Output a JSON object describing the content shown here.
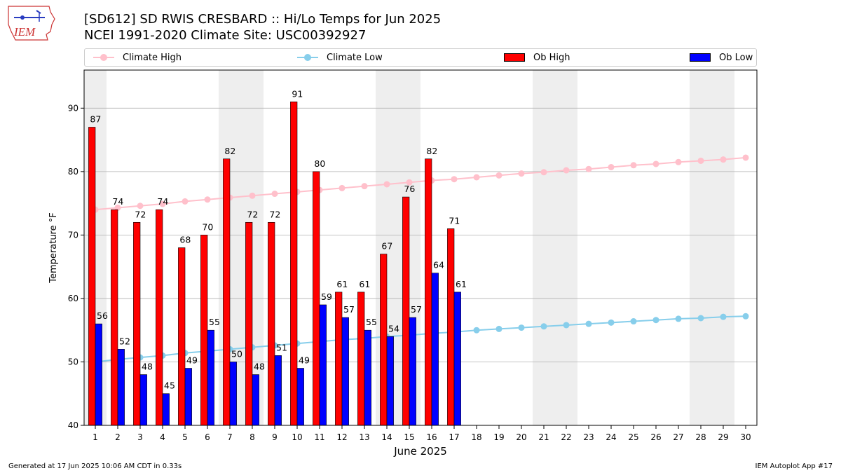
{
  "header": {
    "title_line1": "[SD612] SD RWIS CRESBARD :: Hi/Lo Temps for Jun 2025",
    "title_line2": "NCEI 1991-2020 Climate Site: USC00392927",
    "logo_text": "IEM"
  },
  "legend": {
    "climate_high": "Climate High",
    "climate_low": "Climate Low",
    "ob_high": "Ob High",
    "ob_low": "Ob Low"
  },
  "colors": {
    "climate_high": "#ffc0cb",
    "climate_low": "#87ceeb",
    "ob_high": "#ff0000",
    "ob_low": "#0000ff",
    "weekend_shade": "#eeeeee",
    "grid": "#b0b0b0"
  },
  "footer": {
    "left": "Generated at 17 Jun 2025 10:06 AM CDT in 0.33s",
    "right": "IEM Autoplot App #17"
  },
  "chart_data": {
    "type": "bar",
    "xlabel": "June 2025",
    "ylabel": "Temperature °F",
    "xlim": [
      0.5,
      30.5
    ],
    "ylim": [
      40,
      96
    ],
    "yticks": [
      40,
      50,
      60,
      70,
      80,
      90
    ],
    "grid": "horizontal",
    "legend_position": "top",
    "days": [
      1,
      2,
      3,
      4,
      5,
      6,
      7,
      8,
      9,
      10,
      11,
      12,
      13,
      14,
      15,
      16,
      17,
      18,
      19,
      20,
      21,
      22,
      23,
      24,
      25,
      26,
      27,
      28,
      29,
      30
    ],
    "shaded_days": [
      1,
      7,
      8,
      14,
      15,
      21,
      22,
      28,
      29
    ],
    "series": [
      {
        "name": "Ob High",
        "kind": "bar",
        "values": [
          87,
          74,
          72,
          74,
          68,
          70,
          82,
          72,
          72,
          91,
          80,
          61,
          61,
          67,
          76,
          82,
          71
        ],
        "labels": [
          "87",
          "74",
          "72",
          "74",
          "68",
          "70",
          "82",
          "72",
          "72",
          "91",
          "80",
          "61",
          "61",
          "67",
          "76",
          "82",
          "71"
        ]
      },
      {
        "name": "Ob Low",
        "kind": "bar",
        "values": [
          56,
          52,
          48,
          45,
          49,
          55,
          50,
          48,
          51,
          49,
          59,
          57,
          55,
          54,
          57,
          64,
          61
        ],
        "labels": [
          "56",
          "52",
          "48",
          "45",
          "49",
          "55",
          "50",
          "48",
          "51",
          "49",
          "59",
          "57",
          "55",
          "54",
          "57",
          "64",
          "61"
        ]
      },
      {
        "name": "Climate High",
        "kind": "line",
        "values": [
          74.0,
          74.3,
          74.6,
          74.9,
          75.3,
          75.6,
          75.9,
          76.2,
          76.5,
          76.8,
          77.1,
          77.4,
          77.7,
          78.0,
          78.3,
          78.6,
          78.8,
          79.1,
          79.4,
          79.7,
          79.9,
          80.2,
          80.4,
          80.7,
          81.0,
          81.2,
          81.5,
          81.7,
          81.9,
          82.2
        ]
      },
      {
        "name": "Climate Low",
        "kind": "line",
        "values": [
          50.0,
          50.4,
          50.7,
          51.0,
          51.4,
          51.7,
          52.0,
          52.3,
          52.6,
          52.9,
          53.2,
          53.5,
          53.7,
          54.0,
          54.2,
          54.5,
          54.7,
          55.0,
          55.2,
          55.4,
          55.6,
          55.8,
          56.0,
          56.2,
          56.4,
          56.6,
          56.8,
          56.9,
          57.1,
          57.2
        ]
      }
    ]
  }
}
